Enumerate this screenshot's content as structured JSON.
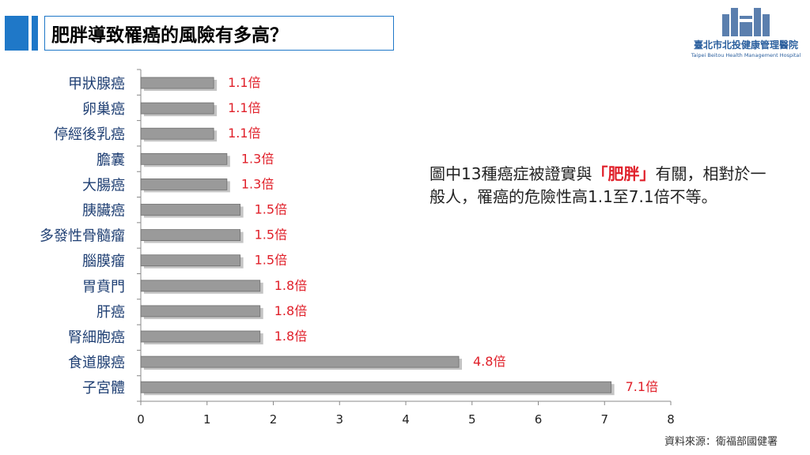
{
  "header": {
    "title": "肥胖導致罹癌的風險有多高？"
  },
  "logo": {
    "name": "臺北市北投健康管理醫院",
    "subtitle": "Taipei Beitou Health Management Hospital",
    "icon": "hospital-building-icon"
  },
  "callout": {
    "part1": "圖中13種癌症被證實與",
    "highlight": "「肥胖」",
    "part2": "有關，相對於一般人，罹癌的危險性高1.1至7.1倍不等。"
  },
  "source": "資料來源：衛福部國健署",
  "colors": {
    "accent": "#1f78c8",
    "bar": "#9a9a9a",
    "value_label": "#e0202a",
    "category_label": "#1f3f73"
  },
  "chart_data": {
    "type": "bar",
    "orientation": "horizontal",
    "categories": [
      "甲狀腺癌",
      "卵巢癌",
      "停經後乳癌",
      "膽囊",
      "大腸癌",
      "胰臟癌",
      "多發性骨髓瘤",
      "腦膜瘤",
      "胃賁門",
      "肝癌",
      "腎細胞癌",
      "食道腺癌",
      "子宮體"
    ],
    "values": [
      1.1,
      1.1,
      1.1,
      1.3,
      1.3,
      1.5,
      1.5,
      1.5,
      1.8,
      1.8,
      1.8,
      4.8,
      7.1
    ],
    "data_labels": [
      "1.1倍",
      "1.1倍",
      "1.1倍",
      "1.3倍",
      "1.3倍",
      "1.5倍",
      "1.5倍",
      "1.5倍",
      "1.8倍",
      "1.8倍",
      "1.8倍",
      "4.8倍",
      "7.1倍"
    ],
    "xlim": [
      0,
      8
    ],
    "xticks": [
      "0",
      "1",
      "2",
      "3",
      "4",
      "5",
      "6",
      "7",
      "8"
    ],
    "title": "",
    "xlabel": "",
    "ylabel": "",
    "grid": false
  }
}
